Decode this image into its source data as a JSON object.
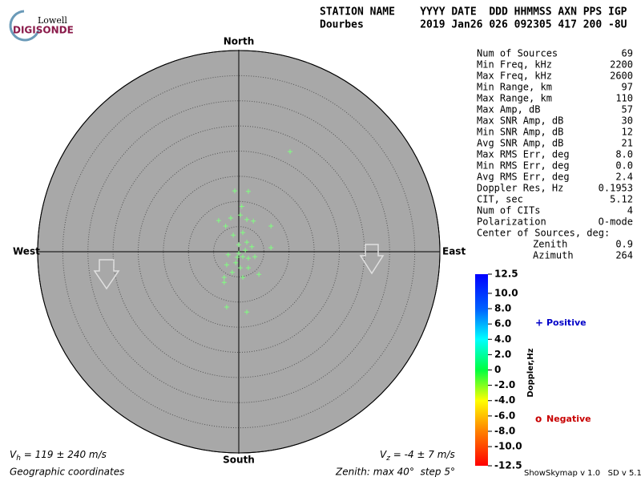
{
  "header": {
    "logo_top": "Lowell",
    "logo_bottom": "DIGISONDE",
    "line1": "STATION NAME    YYYY DATE  DDD HHMMSS AXN PPS IGP",
    "line2": "Dourbes         2019 Jan26 026 092305 417 200 -8U"
  },
  "chart_data": {
    "type": "skymap",
    "xlim": [
      -40,
      40
    ],
    "ylim": [
      -40,
      40
    ],
    "rings": [
      5,
      10,
      15,
      20,
      25,
      30,
      35,
      40
    ],
    "directions": {
      "north": "North",
      "south": "South",
      "west": "West",
      "east": "East"
    },
    "sources": {
      "color": "#80ff80",
      "x": [
        10.2,
        -0.8,
        1.9,
        0.6,
        0.3,
        -4.0,
        -1.6,
        -2.6,
        1.6,
        2.9,
        -1.1,
        6.4,
        0.8,
        6.4,
        1.6,
        0.0,
        2.6,
        -2.1,
        0.0,
        0.8,
        1.9,
        3.2,
        -0.6,
        -2.4,
        0.3,
        1.9,
        4.0,
        -1.3,
        -2.9,
        0.8,
        -2.9,
        -2.4,
        1.6,
        -0.3,
        1.3
      ],
      "y": [
        19.9,
        12.1,
        12.0,
        9.0,
        7.3,
        6.2,
        6.7,
        5.1,
        6.4,
        6.1,
        3.3,
        5.1,
        3.8,
        0.8,
        1.9,
        1.4,
        1.0,
        -0.6,
        -0.3,
        -1.0,
        -1.3,
        -1.0,
        -2.2,
        -2.6,
        -3.2,
        -3.2,
        -4.5,
        -4.1,
        -5.1,
        -5.1,
        -6.1,
        -11.0,
        -12.0,
        -1.1,
        0.3
      ]
    },
    "colorbar": {
      "label": "Doppler,Hz",
      "lim": [
        -12.5,
        12.5
      ],
      "ticks": [
        12.5,
        {
          "value": 10,
          "label": "10.0"
        },
        {
          "value": 8,
          "label": "8.0"
        },
        {
          "value": 6,
          "label": "6.0"
        },
        {
          "value": 4,
          "label": "4.0"
        },
        {
          "value": 2,
          "label": "2.0"
        },
        0,
        {
          "value": -2,
          "label": "-2.0"
        },
        {
          "value": -4,
          "label": "-4.0"
        },
        {
          "value": -6,
          "label": "-6.0"
        },
        {
          "value": -8,
          "label": "-8.0"
        },
        {
          "value": -10,
          "label": "-10.0"
        },
        -12.5
      ]
    },
    "legend": [
      {
        "marker": "+",
        "label": "Positive",
        "color": "#0000c8"
      },
      {
        "marker": "o",
        "label": "Negative",
        "color": "#c80000"
      }
    ]
  },
  "stats": {
    "rows": [
      [
        "Num of Sources",
        "69"
      ],
      [
        "Min Freq, kHz",
        "2200"
      ],
      [
        "Max Freq, kHz",
        "2600"
      ],
      [
        "Min Range, km",
        "97"
      ],
      [
        "Max Range, km",
        "110"
      ],
      [
        "Max Amp, dB",
        "57"
      ],
      [
        "Max SNR Amp, dB",
        "30"
      ],
      [
        "Min SNR Amp, dB",
        "12"
      ],
      [
        "Avg SNR Amp, dB",
        "21"
      ],
      [
        "Max RMS Err, deg",
        "8.0"
      ],
      [
        "Min RMS Err, deg",
        "0.0"
      ],
      [
        "Avg RMS Err, deg",
        "2.4"
      ],
      [
        "Doppler Res, Hz",
        "0.1953"
      ],
      [
        "CIT, sec",
        "5.12"
      ],
      [
        "Num of CITs",
        "4"
      ],
      [
        "Polarization",
        "O-mode"
      ]
    ],
    "center_label": "Center of Sources, deg:",
    "center_rows": [
      [
        "Zenith",
        "0.9"
      ],
      [
        "Azimuth",
        "264"
      ]
    ]
  },
  "footer": {
    "vh": {
      "symbol": "V",
      "sub": "h",
      "text": " = 119 ± 240 m/s"
    },
    "vz": {
      "symbol": "V",
      "sub": "z",
      "text": " = -4 ± 7 m/s"
    },
    "coords": "Geographic coordinates",
    "zenith": "Zenith: max 40°  step 5°",
    "version": "ShowSkymap v 1.0   SD v 5.1"
  }
}
